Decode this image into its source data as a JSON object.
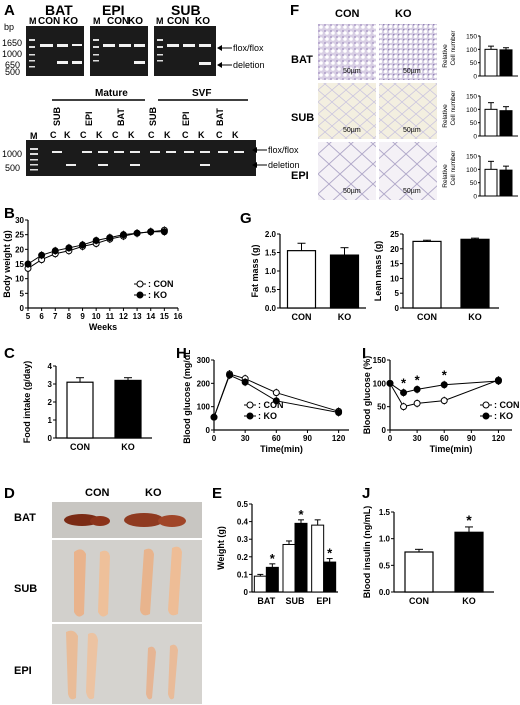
{
  "panels": {
    "A": {
      "label": "A",
      "gel_top": {
        "tissues": [
          "BAT",
          "EPI",
          "SUB"
        ],
        "lanes": [
          "CON",
          "KO"
        ],
        "marker": "M",
        "unit": "bp",
        "bp_ticks": [
          "1650",
          "1000",
          "650",
          "500"
        ],
        "band_labels": [
          "flox/flox",
          "deletion"
        ]
      },
      "gel_bottom": {
        "groups": [
          "Mature",
          "SVF"
        ],
        "tissues": [
          "SUB",
          "EPI",
          "BAT",
          "SUB",
          "EPI",
          "BAT"
        ],
        "lane_letters": [
          "C",
          "K",
          "C",
          "K",
          "C",
          "K",
          "C",
          "K",
          "C",
          "K",
          "C",
          "K"
        ],
        "marker": "M",
        "bp_ticks": [
          "1000",
          "500"
        ],
        "band_labels": [
          "flox/flox",
          "deletion"
        ]
      }
    },
    "B": {
      "label": "B",
      "chart_data": {
        "type": "line",
        "xlabel": "Weeks",
        "ylabel": "Body weight (g)",
        "xlim": [
          5,
          16
        ],
        "ylim": [
          0,
          30
        ],
        "xticks": [
          5,
          6,
          7,
          8,
          9,
          10,
          11,
          12,
          13,
          14,
          15,
          16
        ],
        "yticks": [
          0,
          5,
          10,
          15,
          20,
          25,
          30
        ],
        "x": [
          5,
          6,
          7,
          8,
          9,
          10,
          11,
          12,
          13,
          14,
          15
        ],
        "series": [
          {
            "name": ": CON",
            "values": [
              13.5,
              16.5,
              18.5,
              19.5,
              21,
              22,
              23.5,
              24.5,
              25.5,
              26,
              26.5
            ]
          },
          {
            "name": ": KO",
            "values": [
              15,
              18,
              19.5,
              20.5,
              21.5,
              23,
              24,
              25,
              25.5,
              26,
              26
            ]
          }
        ]
      }
    },
    "C": {
      "label": "C",
      "chart_data": {
        "type": "bar",
        "categories": [
          "CON",
          "KO"
        ],
        "values": [
          3.1,
          3.2
        ],
        "errors": [
          0.25,
          0.15
        ],
        "ylabel": "Food intake (g/day)",
        "ylim": [
          0,
          4
        ],
        "yticks": [
          0,
          1,
          2,
          3,
          4
        ]
      }
    },
    "D": {
      "label": "D",
      "groups": [
        "CON",
        "KO"
      ],
      "rows": [
        "BAT",
        "SUB",
        "EPI"
      ]
    },
    "E": {
      "label": "E",
      "chart_data": {
        "type": "bar",
        "categories": [
          "BAT",
          "SUB",
          "EPI"
        ],
        "series": [
          {
            "values": [
              0.09,
              0.27,
              0.38
            ],
            "errors": [
              0.01,
              0.02,
              0.03
            ]
          },
          {
            "values": [
              0.14,
              0.39,
              0.17
            ],
            "errors": [
              0.02,
              0.02,
              0.02
            ]
          }
        ],
        "significance": [
          "*",
          "*",
          "*"
        ],
        "ylabel": "Weight (g)",
        "ylim": [
          0,
          0.5
        ],
        "yticks": [
          "0",
          "0.1",
          "0.2",
          "0.3",
          "0.4",
          "0.5"
        ]
      }
    },
    "F": {
      "label": "F",
      "groups": [
        "CON",
        "KO"
      ],
      "rows": [
        "BAT",
        "SUB",
        "EPI"
      ],
      "scale_bar": "50µm",
      "chart_data": {
        "type": "bar",
        "categories": [
          "CON",
          "KO"
        ],
        "rows": [
          {
            "values": [
              100,
              98
            ],
            "errors": [
              12,
              8
            ]
          },
          {
            "values": [
              100,
              95
            ],
            "errors": [
              25,
              15
            ]
          },
          {
            "values": [
              100,
              97
            ],
            "errors": [
              30,
              15
            ]
          }
        ],
        "ylabel": "Relative Cell number",
        "ylim": [
          0,
          150
        ],
        "yticks": [
          0,
          50,
          100,
          150
        ]
      }
    },
    "G": {
      "label": "G",
      "chart_data": [
        {
          "type": "bar",
          "categories": [
            "CON",
            "KO"
          ],
          "values": [
            1.55,
            1.43
          ],
          "errors": [
            0.2,
            0.2
          ],
          "ylabel": "Fat mass (g)",
          "ylim": [
            0,
            2.0
          ],
          "yticks": [
            "0.0",
            "0.5",
            "1.0",
            "1.5",
            "2.0"
          ]
        },
        {
          "type": "bar",
          "categories": [
            "CON",
            "KO"
          ],
          "values": [
            22.5,
            23.2
          ],
          "errors": [
            0.4,
            0.4
          ],
          "ylabel": "Lean mass (g)",
          "ylim": [
            0,
            25
          ],
          "yticks": [
            0,
            5,
            10,
            15,
            20,
            25
          ]
        }
      ]
    },
    "H": {
      "label": "H",
      "chart_data": {
        "type": "line",
        "xlabel": "Time(min)",
        "ylabel": "Blood glucose (mg/dL)",
        "xlim": [
          0,
          130
        ],
        "ylim": [
          0,
          300
        ],
        "xticks": [
          0,
          30,
          60,
          90,
          120
        ],
        "yticks": [
          0,
          100,
          200,
          300
        ],
        "x": [
          0,
          15,
          30,
          60,
          120
        ],
        "series": [
          {
            "name": ": CON",
            "values": [
              55,
              240,
              220,
              160,
              80
            ]
          },
          {
            "name": ": KO",
            "values": [
              55,
              235,
              205,
              125,
              75
            ]
          }
        ]
      }
    },
    "I": {
      "label": "I",
      "chart_data": {
        "type": "line",
        "xlabel": "Time(min)",
        "ylabel": "Blood glucose (%)",
        "xlim": [
          0,
          135
        ],
        "ylim": [
          0,
          150
        ],
        "xticks": [
          0,
          30,
          60,
          90,
          120
        ],
        "yticks": [
          0,
          50,
          100,
          150
        ],
        "x": [
          0,
          15,
          30,
          60,
          120
        ],
        "series": [
          {
            "name": ": CON",
            "values": [
              100,
              50,
              57,
              63,
              107
            ]
          },
          {
            "name": ": KO",
            "values": [
              100,
              80,
              87,
              97,
              105
            ]
          }
        ],
        "significance": [
          "*",
          "*",
          "*"
        ]
      }
    },
    "J": {
      "label": "J",
      "chart_data": {
        "type": "bar",
        "categories": [
          "CON",
          "KO"
        ],
        "values": [
          0.75,
          1.12
        ],
        "errors": [
          0.05,
          0.1
        ],
        "significance": [
          "",
          "*"
        ],
        "ylabel": "Blood insulin (ng/mL)",
        "ylim": [
          0,
          1.5
        ],
        "yticks": [
          "0.0",
          "0.5",
          "1.0",
          "1.5"
        ]
      }
    }
  }
}
